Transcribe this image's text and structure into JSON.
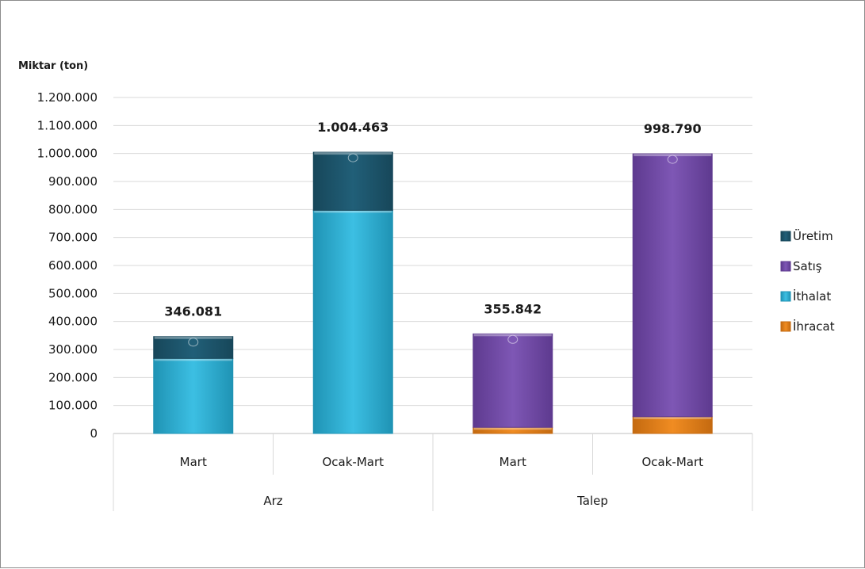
{
  "chart_data": {
    "type": "bar",
    "stacked": true,
    "ylabel": "Miktar (ton)",
    "ylim": [
      0,
      1200000
    ],
    "y_ticks": [
      "0",
      "100.000",
      "200.000",
      "300.000",
      "400.000",
      "500.000",
      "600.000",
      "700.000",
      "800.000",
      "900.000",
      "1.000.000",
      "1.100.000",
      "1.200.000"
    ],
    "grid": true,
    "legend_position": "right",
    "groups": [
      {
        "label": "Arz",
        "categories": [
          "Mart",
          "Ocak-Mart"
        ]
      },
      {
        "label": "Talep",
        "categories": [
          "Mart",
          "Ocak-Mart"
        ]
      }
    ],
    "bars": [
      {
        "group": "Arz",
        "category": "Mart",
        "segments": [
          {
            "series": "İthalat",
            "value": 268000
          },
          {
            "series": "Üretim",
            "value": 78081
          }
        ],
        "total": 346081,
        "total_label": "346.081"
      },
      {
        "group": "Arz",
        "category": "Ocak-Mart",
        "segments": [
          {
            "series": "İthalat",
            "value": 797000
          },
          {
            "series": "Üretim",
            "value": 207463
          }
        ],
        "total": 1004463,
        "total_label": "1.004.463"
      },
      {
        "group": "Talep",
        "category": "Mart",
        "segments": [
          {
            "series": "İhracat",
            "value": 22000
          },
          {
            "series": "Satış",
            "value": 333842
          }
        ],
        "total": 355842,
        "total_label": "355.842"
      },
      {
        "group": "Talep",
        "category": "Ocak-Mart",
        "segments": [
          {
            "series": "İhracat",
            "value": 60000
          },
          {
            "series": "Satış",
            "value": 938790
          }
        ],
        "total": 998790,
        "total_label": "998.790"
      }
    ],
    "series": [
      {
        "name": "Üretim",
        "color": "#215f78",
        "dark": "#17475a"
      },
      {
        "name": "Satış",
        "color": "#7e57b5",
        "dark": "#5e3a8f"
      },
      {
        "name": "İthalat",
        "color": "#3cbfe3",
        "dark": "#1f93b4"
      },
      {
        "name": "İhracat",
        "color": "#f08c22",
        "dark": "#c46a10"
      }
    ]
  }
}
